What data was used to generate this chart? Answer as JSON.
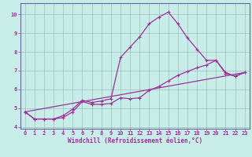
{
  "xlabel": "Windchill (Refroidissement éolien,°C)",
  "bg_color": "#c8ede8",
  "line_color": "#993399",
  "grid_color": "#9bbfbb",
  "spine_color": "#666699",
  "xlim": [
    -0.5,
    23.5
  ],
  "ylim": [
    3.9,
    10.6
  ],
  "yticks": [
    4,
    5,
    6,
    7,
    8,
    9,
    10
  ],
  "xticks": [
    0,
    1,
    2,
    3,
    4,
    5,
    6,
    7,
    8,
    9,
    10,
    11,
    12,
    13,
    14,
    15,
    16,
    17,
    18,
    19,
    20,
    21,
    22,
    23
  ],
  "line1_x": [
    0,
    1,
    2,
    3,
    4,
    5,
    6,
    7,
    8,
    9,
    10,
    11,
    12,
    13,
    14,
    15,
    16,
    17,
    18,
    19,
    20,
    21,
    22,
    23
  ],
  "line1_y": [
    4.8,
    4.42,
    4.42,
    4.42,
    4.5,
    4.8,
    5.35,
    5.2,
    5.2,
    5.25,
    5.55,
    5.5,
    5.55,
    5.95,
    6.15,
    6.45,
    6.75,
    6.95,
    7.15,
    7.3,
    7.55,
    6.85,
    6.7,
    6.9
  ],
  "line2_x": [
    0,
    1,
    2,
    3,
    4,
    5,
    6,
    7,
    8,
    9,
    10,
    11,
    12,
    13,
    14,
    15,
    16,
    17,
    18,
    19,
    20,
    21,
    22,
    23
  ],
  "line2_y": [
    4.8,
    4.42,
    4.42,
    4.42,
    4.6,
    4.95,
    5.42,
    5.3,
    5.38,
    5.5,
    7.7,
    8.25,
    8.8,
    9.5,
    9.85,
    10.12,
    9.5,
    8.75,
    8.15,
    7.55,
    7.55,
    6.9,
    6.7,
    6.9
  ],
  "line3_x": [
    0,
    23
  ],
  "line3_y": [
    4.8,
    6.9
  ]
}
